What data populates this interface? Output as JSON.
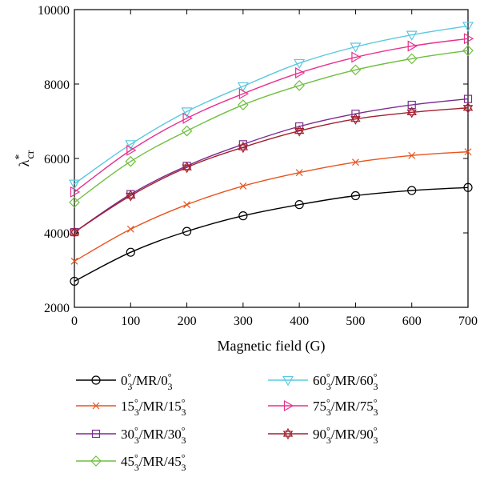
{
  "chart_data": {
    "type": "line",
    "title": "",
    "xlabel": "Magnetic field (G)",
    "ylabel": "λ*cr",
    "ylabel_parts": {
      "main": "λ",
      "sup": "*",
      "sub": "cr"
    },
    "x": [
      0,
      100,
      200,
      300,
      400,
      500,
      600,
      700
    ],
    "xlim": [
      0,
      700
    ],
    "ylim": [
      2000,
      10000
    ],
    "xticks": [
      0,
      100,
      200,
      300,
      400,
      500,
      600,
      700
    ],
    "yticks": [
      2000,
      4000,
      6000,
      8000,
      10000
    ],
    "grid": false,
    "legend_placement": "bottom, two columns",
    "series": [
      {
        "name": "0°3/MR/0°3",
        "label": {
          "a": "0",
          "b": "/MR/0"
        },
        "color": "#000000",
        "marker": "circle",
        "values": [
          2700,
          3480,
          4040,
          4460,
          4760,
          5000,
          5140,
          5220
        ]
      },
      {
        "name": "15°3/MR/15°3",
        "label": {
          "a": "15",
          "b": "/MR/15"
        },
        "color": "#e8541e",
        "marker": "x",
        "values": [
          3240,
          4100,
          4760,
          5260,
          5620,
          5900,
          6080,
          6180
        ]
      },
      {
        "name": "30°3/MR/30°3",
        "label": {
          "a": "30",
          "b": "/MR/30"
        },
        "color": "#7b2d8e",
        "marker": "square",
        "values": [
          4020,
          5040,
          5800,
          6380,
          6860,
          7200,
          7440,
          7600
        ]
      },
      {
        "name": "45°3/MR/45°3",
        "label": {
          "a": "45",
          "b": "/MR/45"
        },
        "color": "#6fbf3f",
        "marker": "diamond",
        "values": [
          4820,
          5920,
          6740,
          7440,
          7960,
          8380,
          8680,
          8900
        ]
      },
      {
        "name": "60°3/MR/60°3",
        "label": {
          "a": "60",
          "b": "/MR/60"
        },
        "color": "#5bc8e0",
        "marker": "triangle-down",
        "values": [
          5320,
          6380,
          7260,
          7940,
          8560,
          9000,
          9320,
          9560
        ]
      },
      {
        "name": "75°3/MR/75°3",
        "label": {
          "a": "75",
          "b": "/MR/75"
        },
        "color": "#e8318e",
        "marker": "triangle-right",
        "values": [
          5100,
          6220,
          7080,
          7740,
          8300,
          8720,
          9020,
          9220
        ]
      },
      {
        "name": "90°3/MR/90°3",
        "label": {
          "a": "90",
          "b": "/MR/90"
        },
        "color": "#a4202e",
        "marker": "hexagram",
        "values": [
          4020,
          5000,
          5760,
          6300,
          6740,
          7060,
          7240,
          7360
        ]
      }
    ]
  }
}
